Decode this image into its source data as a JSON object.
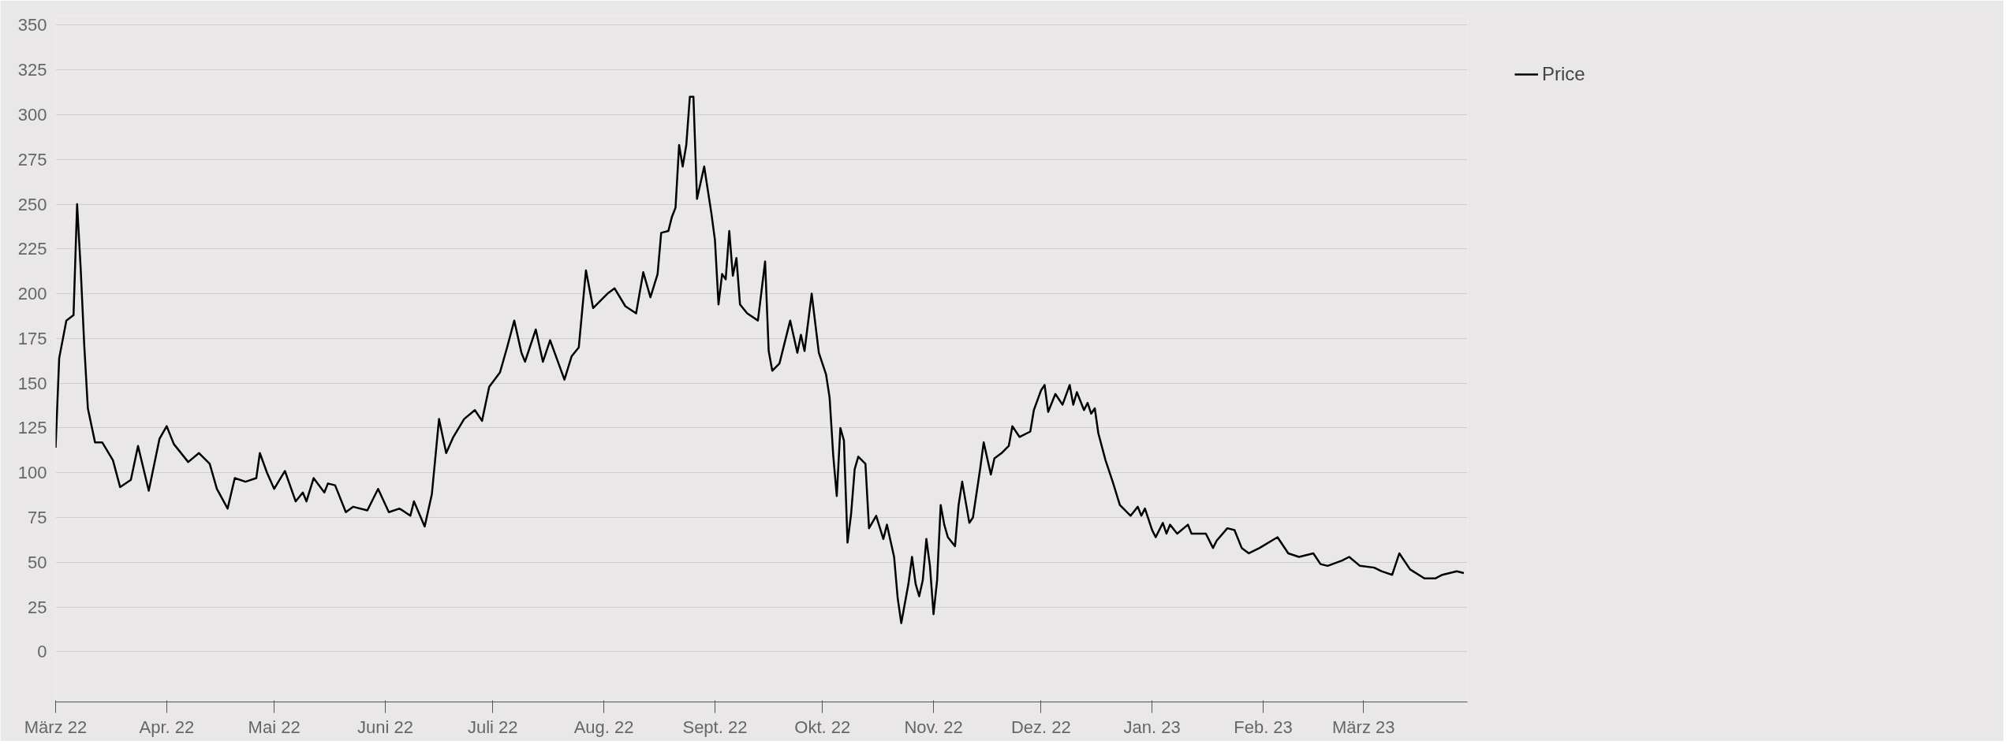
{
  "chart_data": {
    "type": "line",
    "x": [
      "2022-03-01",
      "2022-03-02",
      "2022-03-04",
      "2022-03-06",
      "2022-03-07",
      "2022-03-08",
      "2022-03-09",
      "2022-03-10",
      "2022-03-12",
      "2022-03-14",
      "2022-03-17",
      "2022-03-19",
      "2022-03-22",
      "2022-03-24",
      "2022-03-27",
      "2022-03-30",
      "2022-04-01",
      "2022-04-03",
      "2022-04-07",
      "2022-04-10",
      "2022-04-13",
      "2022-04-15",
      "2022-04-18",
      "2022-04-20",
      "2022-04-23",
      "2022-04-26",
      "2022-04-27",
      "2022-04-29",
      "2022-05-01",
      "2022-05-04",
      "2022-05-07",
      "2022-05-09",
      "2022-05-10",
      "2022-05-12",
      "2022-05-15",
      "2022-05-16",
      "2022-05-18",
      "2022-05-21",
      "2022-05-23",
      "2022-05-27",
      "2022-05-29",
      "2022-05-30",
      "2022-06-02",
      "2022-06-05",
      "2022-06-08",
      "2022-06-09",
      "2022-06-12",
      "2022-06-14",
      "2022-06-16",
      "2022-06-18",
      "2022-06-20",
      "2022-06-23",
      "2022-06-26",
      "2022-06-28",
      "2022-06-30",
      "2022-07-03",
      "2022-07-05",
      "2022-07-07",
      "2022-07-09",
      "2022-07-10",
      "2022-07-13",
      "2022-07-15",
      "2022-07-17",
      "2022-07-21",
      "2022-07-23",
      "2022-07-25",
      "2022-07-27",
      "2022-07-29",
      "2022-08-02",
      "2022-08-04",
      "2022-08-07",
      "2022-08-10",
      "2022-08-12",
      "2022-08-14",
      "2022-08-16",
      "2022-08-17",
      "2022-08-19",
      "2022-08-20",
      "2022-08-21",
      "2022-08-22",
      "2022-08-23",
      "2022-08-24",
      "2022-08-25",
      "2022-08-26",
      "2022-08-27",
      "2022-08-29",
      "2022-08-31",
      "2022-09-01",
      "2022-09-02",
      "2022-09-03",
      "2022-09-04",
      "2022-09-05",
      "2022-09-06",
      "2022-09-07",
      "2022-09-08",
      "2022-09-10",
      "2022-09-13",
      "2022-09-15",
      "2022-09-16",
      "2022-09-17",
      "2022-09-19",
      "2022-09-22",
      "2022-09-24",
      "2022-09-25",
      "2022-09-26",
      "2022-09-28",
      "2022-09-30",
      "2022-10-02",
      "2022-10-03",
      "2022-10-04",
      "2022-10-05",
      "2022-10-06",
      "2022-10-07",
      "2022-10-08",
      "2022-10-09",
      "2022-10-10",
      "2022-10-11",
      "2022-10-13",
      "2022-10-14",
      "2022-10-16",
      "2022-10-18",
      "2022-10-19",
      "2022-10-21",
      "2022-10-22",
      "2022-10-23",
      "2022-10-24",
      "2022-10-25",
      "2022-10-26",
      "2022-10-27",
      "2022-10-28",
      "2022-10-29",
      "2022-10-30",
      "2022-10-31",
      "2022-11-01",
      "2022-11-02",
      "2022-11-03",
      "2022-11-04",
      "2022-11-05",
      "2022-11-07",
      "2022-11-08",
      "2022-11-09",
      "2022-11-11",
      "2022-11-12",
      "2022-11-14",
      "2022-11-15",
      "2022-11-17",
      "2022-11-18",
      "2022-11-20",
      "2022-11-22",
      "2022-11-23",
      "2022-11-25",
      "2022-11-28",
      "2022-11-29",
      "2022-12-01",
      "2022-12-02",
      "2022-12-03",
      "2022-12-05",
      "2022-12-07",
      "2022-12-09",
      "2022-12-10",
      "2022-12-11",
      "2022-12-13",
      "2022-12-14",
      "2022-12-15",
      "2022-12-16",
      "2022-12-17",
      "2022-12-19",
      "2022-12-21",
      "2022-12-23",
      "2022-12-26",
      "2022-12-28",
      "2022-12-29",
      "2022-12-30",
      "2023-01-01",
      "2023-01-02",
      "2023-01-04",
      "2023-01-05",
      "2023-01-06",
      "2023-01-08",
      "2023-01-11",
      "2023-01-12",
      "2023-01-16",
      "2023-01-18",
      "2023-01-19",
      "2023-01-22",
      "2023-01-24",
      "2023-01-26",
      "2023-01-28",
      "2023-01-31",
      "2023-02-05",
      "2023-02-08",
      "2023-02-11",
      "2023-02-15",
      "2023-02-17",
      "2023-02-19",
      "2023-02-23",
      "2023-02-25",
      "2023-02-28",
      "2023-03-04",
      "2023-03-06",
      "2023-03-09",
      "2023-03-11",
      "2023-03-14",
      "2023-03-18",
      "2023-03-21",
      "2023-03-23",
      "2023-03-27",
      "2023-03-29"
    ],
    "series": [
      {
        "name": "Price",
        "color": "#000000",
        "values": [
          114,
          164,
          185,
          188,
          250,
          214,
          171,
          136,
          117,
          117,
          107,
          92,
          96,
          115,
          90,
          119,
          126,
          116,
          106,
          111,
          105,
          91,
          80,
          97,
          95,
          97,
          111,
          100,
          91,
          101,
          84,
          89,
          84,
          97,
          89,
          94,
          93,
          78,
          81,
          79,
          87,
          91,
          78,
          80,
          76,
          84,
          70,
          88,
          130,
          111,
          120,
          130,
          135,
          129,
          148,
          156,
          170,
          185,
          167,
          162,
          180,
          162,
          174,
          152,
          165,
          170,
          213,
          192,
          200,
          203,
          193,
          189,
          212,
          198,
          211,
          234,
          235,
          243,
          248,
          283,
          271,
          283,
          310,
          310,
          253,
          271,
          245,
          230,
          194,
          211,
          208,
          235,
          210,
          220,
          194,
          189,
          185,
          218,
          168,
          157,
          161,
          185,
          167,
          177,
          168,
          200,
          167,
          155,
          142,
          110,
          87,
          125,
          118,
          61,
          77,
          102,
          109,
          105,
          69,
          76,
          63,
          71,
          53,
          30,
          16,
          27,
          38,
          53,
          38,
          31,
          40,
          63,
          48,
          21,
          40,
          82,
          71,
          64,
          59,
          82,
          95,
          72,
          75,
          102,
          117,
          99,
          108,
          111,
          115,
          126,
          120,
          123,
          135,
          146,
          149,
          134,
          144,
          138,
          149,
          138,
          145,
          135,
          139,
          133,
          136,
          122,
          107,
          95,
          82,
          76,
          81,
          76,
          80,
          68,
          64,
          72,
          66,
          71,
          66,
          71,
          66,
          66,
          58,
          62,
          69,
          68,
          58,
          55,
          58,
          64,
          55,
          53,
          55,
          49,
          48,
          51,
          53,
          48,
          47,
          45,
          43,
          55,
          46,
          41,
          41,
          43,
          45,
          44
        ]
      }
    ],
    "xlim": [
      "2022-03-01",
      "2023-03-30"
    ],
    "xticks": [
      {
        "value": "2022-03-01",
        "label": "März 22"
      },
      {
        "value": "2022-04-01",
        "label": "Apr. 22"
      },
      {
        "value": "2022-05-01",
        "label": "Mai 22"
      },
      {
        "value": "2022-06-01",
        "label": "Juni 22"
      },
      {
        "value": "2022-07-01",
        "label": "Juli 22"
      },
      {
        "value": "2022-08-01",
        "label": "Aug. 22"
      },
      {
        "value": "2022-09-01",
        "label": "Sept. 22"
      },
      {
        "value": "2022-10-01",
        "label": "Okt. 22"
      },
      {
        "value": "2022-11-01",
        "label": "Nov. 22"
      },
      {
        "value": "2022-12-01",
        "label": "Dez. 22"
      },
      {
        "value": "2023-01-01",
        "label": "Jan. 23"
      },
      {
        "value": "2023-02-01",
        "label": "Feb. 23"
      },
      {
        "value": "2023-03-01",
        "label": "März 23"
      }
    ],
    "ylim": [
      -28,
      355
    ],
    "yticks": [
      0,
      25,
      50,
      75,
      100,
      125,
      150,
      175,
      200,
      225,
      250,
      275,
      300,
      325,
      350
    ],
    "grid": "y",
    "legend": "top right",
    "marker": "none",
    "line_style": "solid"
  }
}
